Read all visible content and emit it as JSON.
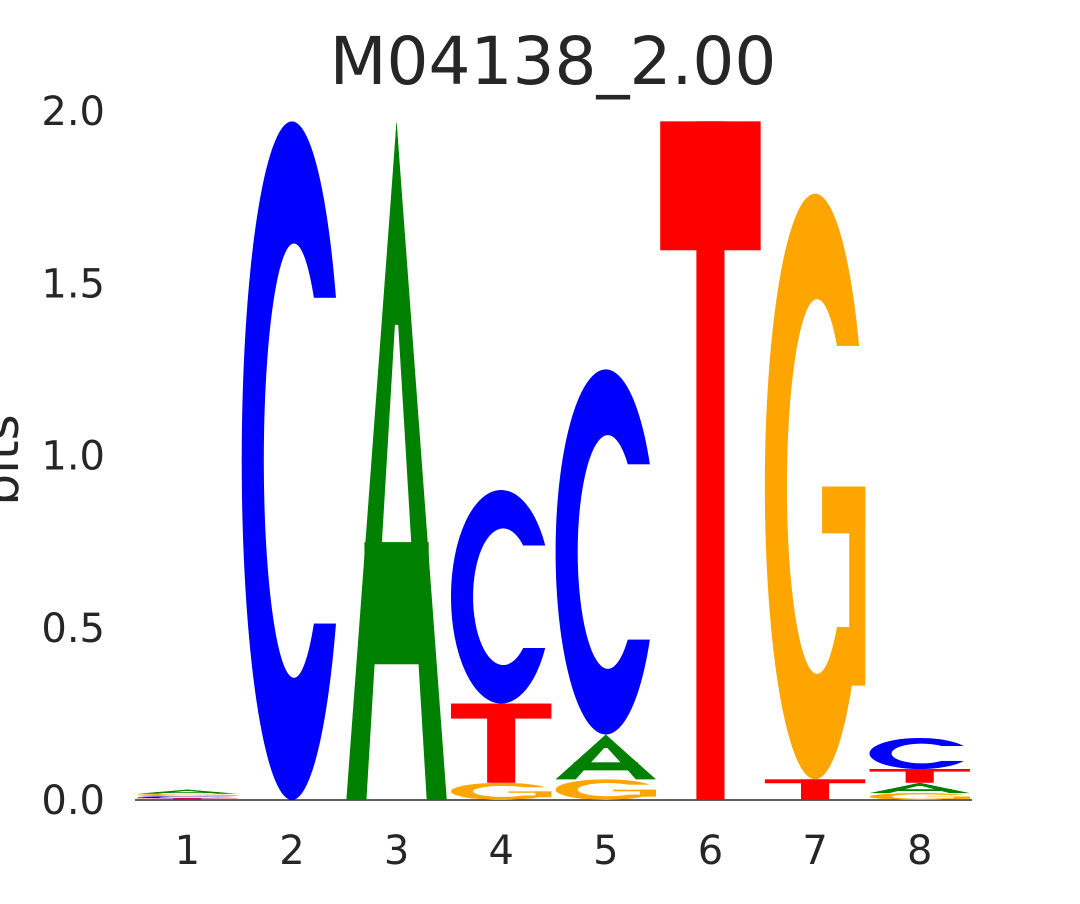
{
  "chart_data": {
    "type": "sequence-logo",
    "title": "M04138_2.00",
    "xlabel": "",
    "ylabel": "bits",
    "ylim": [
      0,
      2.0
    ],
    "yticks": [
      "0.0",
      "0.5",
      "1.0",
      "1.5",
      "2.0"
    ],
    "ytick_values": [
      0,
      0.5,
      1.0,
      1.5,
      2.0
    ],
    "positions": [
      "1",
      "2",
      "3",
      "4",
      "5",
      "6",
      "7",
      "8"
    ],
    "colors": {
      "A": "#008000",
      "C": "#0000ff",
      "G": "#ffa500",
      "T": "#ff0000"
    },
    "columns": [
      [
        {
          "base": "T",
          "bits": 0.005
        },
        {
          "base": "C",
          "bits": 0.006
        },
        {
          "base": "G",
          "bits": 0.007
        },
        {
          "base": "A",
          "bits": 0.012
        }
      ],
      [
        {
          "base": "C",
          "bits": 1.97
        }
      ],
      [
        {
          "base": "A",
          "bits": 1.97
        }
      ],
      [
        {
          "base": "G",
          "bits": 0.05
        },
        {
          "base": "T",
          "bits": 0.23
        },
        {
          "base": "C",
          "bits": 0.62
        }
      ],
      [
        {
          "base": "G",
          "bits": 0.06
        },
        {
          "base": "A",
          "bits": 0.13
        },
        {
          "base": "C",
          "bits": 1.06
        }
      ],
      [
        {
          "base": "T",
          "bits": 1.97
        }
      ],
      [
        {
          "base": "T",
          "bits": 0.06
        },
        {
          "base": "G",
          "bits": 1.7
        }
      ],
      [
        {
          "base": "G",
          "bits": 0.02
        },
        {
          "base": "A",
          "bits": 0.03
        },
        {
          "base": "T",
          "bits": 0.04
        },
        {
          "base": "C",
          "bits": 0.09
        }
      ]
    ]
  }
}
